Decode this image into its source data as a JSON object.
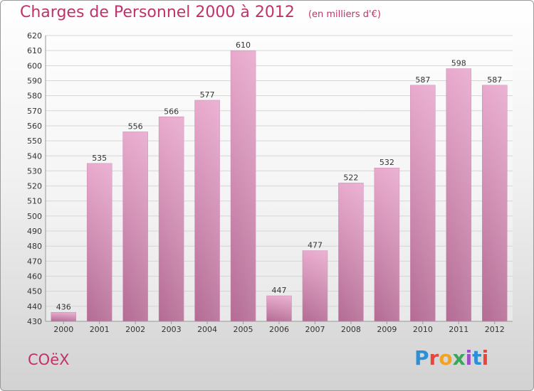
{
  "header": {
    "title": "Charges de Personnel 2000 à 2012",
    "subtitle": "(en milliers d'€)"
  },
  "footer": {
    "commune": "COëX",
    "logo_text": "Proxiti",
    "logo_colors": [
      "#2e8fd6",
      "#e8453c",
      "#f2a324",
      "#3aa65c",
      "#9c4fc4",
      "#2e8fd6",
      "#e8453c"
    ]
  },
  "chart_data": {
    "type": "bar",
    "title": "Charges de Personnel 2000 à 2012",
    "subtitle": "(en milliers d'€)",
    "categories": [
      "2000",
      "2001",
      "2002",
      "2003",
      "2004",
      "2005",
      "2006",
      "2007",
      "2008",
      "2009",
      "2010",
      "2011",
      "2012"
    ],
    "values": [
      436,
      535,
      556,
      566,
      577,
      610,
      447,
      477,
      522,
      532,
      587,
      598,
      587
    ],
    "ylim": [
      430,
      620
    ],
    "yticks": [
      430,
      440,
      450,
      460,
      470,
      480,
      490,
      500,
      510,
      520,
      530,
      540,
      550,
      560,
      570,
      580,
      590,
      600,
      610,
      620
    ],
    "grid": true,
    "data_labels": true,
    "bar_color": "#d27fad",
    "xlabel": "",
    "ylabel": ""
  }
}
